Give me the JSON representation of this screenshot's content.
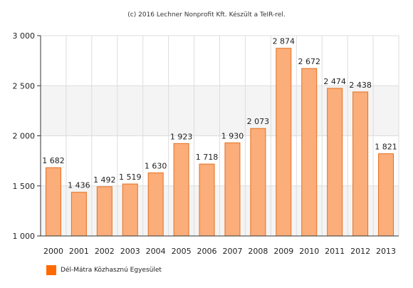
{
  "chart_data": {
    "type": "bar",
    "credit": "(c) 2016 Lechner Nonprofit Kft. Készült a TeIR-rel.",
    "categories": [
      "2000",
      "2001",
      "2002",
      "2003",
      "2004",
      "2005",
      "2006",
      "2007",
      "2008",
      "2009",
      "2010",
      "2011",
      "2012",
      "2013"
    ],
    "series": [
      {
        "name": "Dél-Mátra Közhasznú Egyesület",
        "values": [
          1682,
          1436,
          1492,
          1519,
          1630,
          1923,
          1718,
          1930,
          2073,
          2874,
          2672,
          2474,
          2438,
          1821
        ],
        "labels": [
          "1 682",
          "1 436",
          "1 492",
          "1 519",
          "1 630",
          "1 923",
          "1 718",
          "1 930",
          "2 073",
          "2 874",
          "2 672",
          "2 474",
          "2 438",
          "1 821"
        ]
      }
    ],
    "ylim": [
      1000,
      3000
    ],
    "yticks": [
      1000,
      1500,
      2000,
      2500,
      3000
    ],
    "ytick_labels": [
      "1 000",
      "1 500",
      "2 000",
      "2 500",
      "3 000"
    ],
    "grid": true,
    "legend_position": "bottom-left",
    "colors": {
      "bar_fill": "#fbad7a",
      "bar_stroke": "#e5701e",
      "legend_swatch": "#ff6a00",
      "band_fill": "#f4f4f4",
      "grid": "#dddddd",
      "axis": "#333333"
    }
  }
}
